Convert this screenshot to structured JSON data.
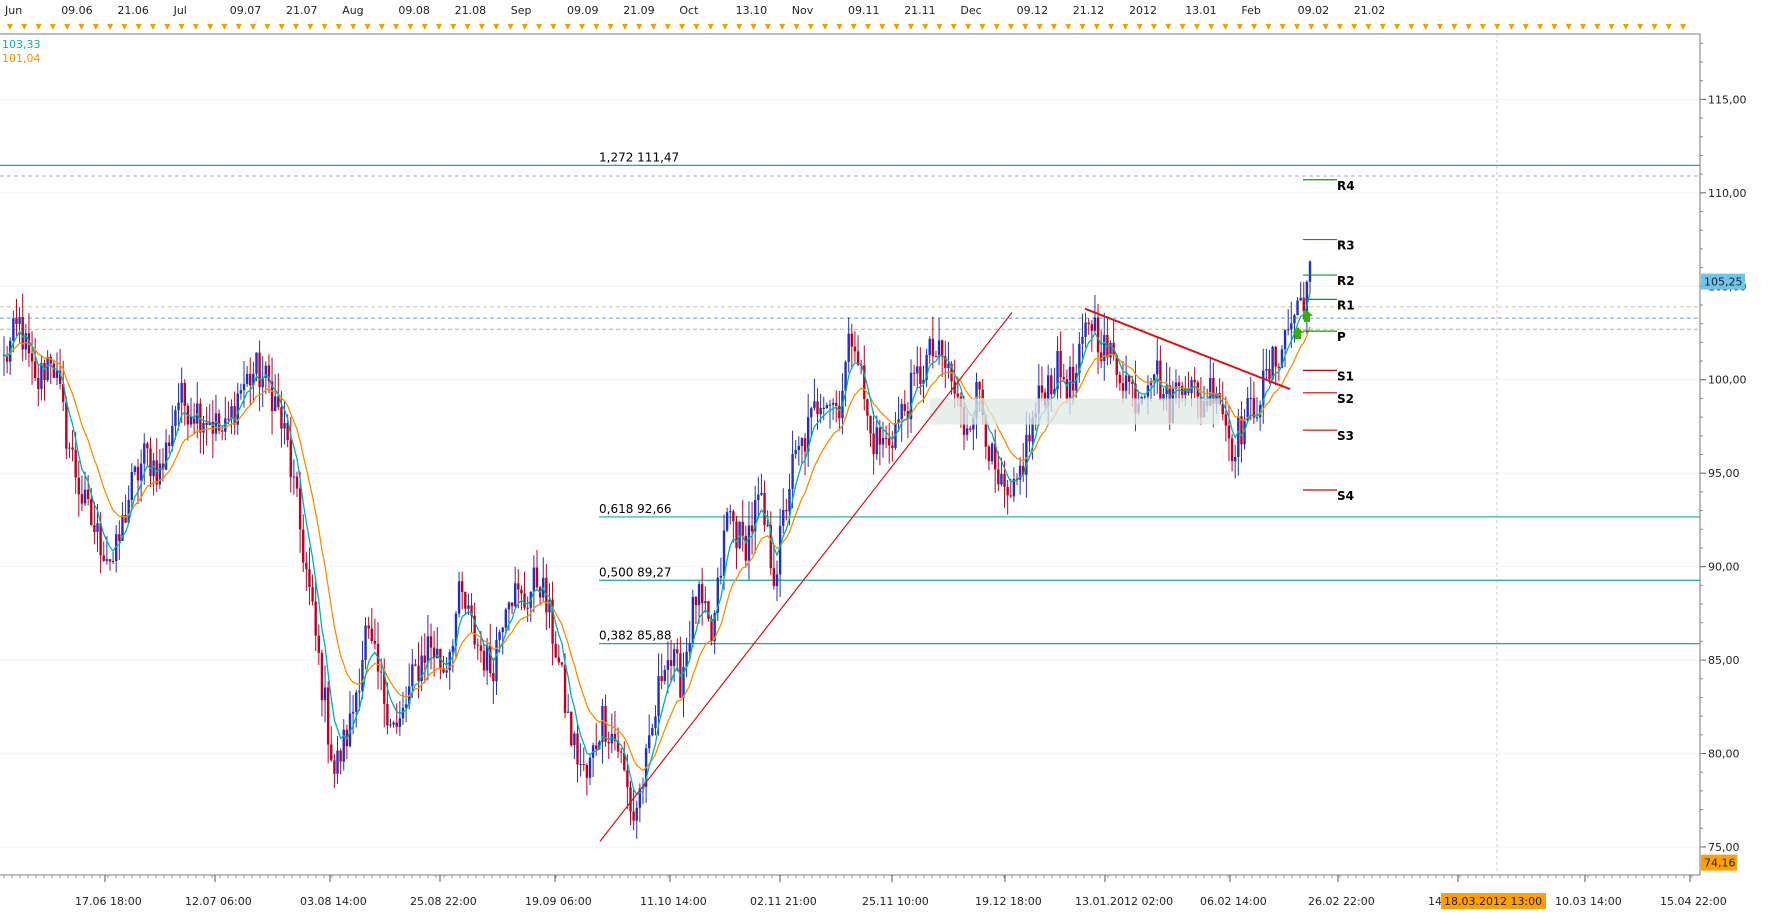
{
  "legend": {
    "ma_fast_value": "103,33",
    "ma_slow_value": "101,04",
    "ma_fast_color": "#00b0b0",
    "ma_slow_color": "#ff8c00"
  },
  "price_badges": {
    "current": "105,25",
    "current_bg": "#6ec6f0",
    "bottom": "74,16",
    "bottom_bg": "#ffa000"
  },
  "top_timeline_labels": [
    "Jun",
    "09.06",
    "21.06",
    "Jul",
    "09.07",
    "21.07",
    "Aug",
    "09.08",
    "21.08",
    "Sep",
    "09.09",
    "21.09",
    "Oct",
    "13.10",
    "Nov",
    "09.11",
    "21.11",
    "Dec",
    "09.12",
    "21.12",
    "2012",
    "13.01",
    "Feb",
    "09.02",
    "21.02"
  ],
  "bottom_axis": {
    "labels": [
      "17.06 18:00",
      "12.07 06:00",
      "03.08 14:00",
      "25.08 22:00",
      "19.09 06:00",
      "11.10 14:00",
      "02.11 21:00",
      "25.11 10:00",
      "19.12 18:00",
      "13.01.2012 02:00",
      "06.02 14:00",
      "26.02 22:00",
      "14",
      "10.03 14:00",
      "15.04 22:00"
    ],
    "highlight": "18.03.2012 13:00"
  },
  "chart_data": {
    "type": "candlestick",
    "y_axis": {
      "range": [
        73.5,
        118.5
      ],
      "ticks": [
        "115,00",
        "110,00",
        "105,00",
        "100,00",
        "95,00",
        "90,00",
        "85,00",
        "80,00",
        "75,00"
      ]
    },
    "fibonacci_levels": [
      {
        "label": "1,272 111,47",
        "value": 111.47
      },
      {
        "label": "0,618 92,66",
        "value": 92.66
      },
      {
        "label": "0,500 89,27",
        "value": 89.27
      },
      {
        "label": "0,382 85,88",
        "value": 85.88
      }
    ],
    "pivot_levels": [
      {
        "label": "R4",
        "value": 110.7,
        "color": "#00a000"
      },
      {
        "label": "R3",
        "value": 107.5,
        "color": "#00a000"
      },
      {
        "label": "R2",
        "value": 105.6,
        "color": "#00a000"
      },
      {
        "label": "R1",
        "value": 104.3,
        "color": "#00a000"
      },
      {
        "label": "P",
        "value": 102.6,
        "color": "#00a000"
      },
      {
        "label": "S1",
        "value": 100.5,
        "color": "#d00000"
      },
      {
        "label": "S2",
        "value": 99.3,
        "color": "#d00000"
      },
      {
        "label": "S3",
        "value": 97.3,
        "color": "#d00000"
      },
      {
        "label": "S4",
        "value": 94.1,
        "color": "#d00000"
      }
    ],
    "horizontal_dashed": [
      110.9,
      103.9,
      103.3,
      102.7
    ],
    "price_path_keypoints": [
      [
        0,
        101.0
      ],
      [
        1,
        103.0
      ],
      [
        2,
        99.5
      ],
      [
        3,
        101.5
      ],
      [
        4,
        97.0
      ],
      [
        5,
        93.5
      ],
      [
        6,
        91.5
      ],
      [
        7,
        90.2
      ],
      [
        8,
        94.0
      ],
      [
        9,
        96.0
      ],
      [
        10,
        95.0
      ],
      [
        11,
        99.0
      ],
      [
        12,
        98.5
      ],
      [
        13,
        98.0
      ],
      [
        14,
        97.0
      ],
      [
        15,
        99.5
      ],
      [
        16,
        100.5
      ],
      [
        17,
        99.5
      ],
      [
        18,
        96.5
      ],
      [
        19,
        91.0
      ],
      [
        20,
        85.0
      ],
      [
        21,
        79.0
      ],
      [
        22,
        81.5
      ],
      [
        23,
        86.5
      ],
      [
        24,
        83.5
      ],
      [
        25,
        81.0
      ],
      [
        26,
        84.0
      ],
      [
        27,
        86.0
      ],
      [
        28,
        84.5
      ],
      [
        29,
        88.5
      ],
      [
        30,
        86.0
      ],
      [
        31,
        84.5
      ],
      [
        32,
        89.0
      ],
      [
        33,
        88.0
      ],
      [
        34,
        89.5
      ],
      [
        35,
        86.0
      ],
      [
        36,
        81.0
      ],
      [
        37,
        78.5
      ],
      [
        38,
        82.0
      ],
      [
        39,
        80.5
      ],
      [
        40,
        76.5
      ],
      [
        41,
        80.0
      ],
      [
        42,
        85.5
      ],
      [
        43,
        84.0
      ],
      [
        44,
        88.5
      ],
      [
        45,
        86.0
      ],
      [
        46,
        93.0
      ],
      [
        47,
        91.0
      ],
      [
        48,
        93.5
      ],
      [
        49,
        89.5
      ],
      [
        50,
        95.0
      ],
      [
        51,
        97.0
      ],
      [
        52,
        99.5
      ],
      [
        53,
        98.5
      ],
      [
        54,
        103.0
      ],
      [
        55,
        97.0
      ],
      [
        56,
        96.5
      ],
      [
        57,
        98.0
      ],
      [
        58,
        100.0
      ],
      [
        59,
        101.5
      ],
      [
        60,
        100.5
      ],
      [
        61,
        97.5
      ],
      [
        62,
        99.5
      ],
      [
        63,
        94.5
      ],
      [
        64,
        93.0
      ],
      [
        65,
        96.5
      ],
      [
        66,
        99.5
      ],
      [
        67,
        100.5
      ],
      [
        68,
        99.5
      ],
      [
        69,
        103.5
      ],
      [
        70,
        101.5
      ],
      [
        71,
        100.5
      ],
      [
        72,
        99.0
      ],
      [
        73,
        101.0
      ],
      [
        74,
        98.5
      ],
      [
        75,
        100.5
      ],
      [
        76,
        98.5
      ],
      [
        77,
        100.0
      ],
      [
        78,
        96.5
      ],
      [
        79,
        98.0
      ],
      [
        80,
        99.5
      ],
      [
        81,
        101.5
      ],
      [
        82,
        103.5
      ],
      [
        83,
        105.5
      ]
    ],
    "trendlines": [
      {
        "name": "support",
        "from": [
          0.0,
          75.3
        ],
        "to": [
          1.0,
          103.6
        ]
      },
      {
        "name": "resistance",
        "from": [
          0.0,
          103.8
        ],
        "to": [
          1.0,
          99.5
        ]
      }
    ]
  }
}
